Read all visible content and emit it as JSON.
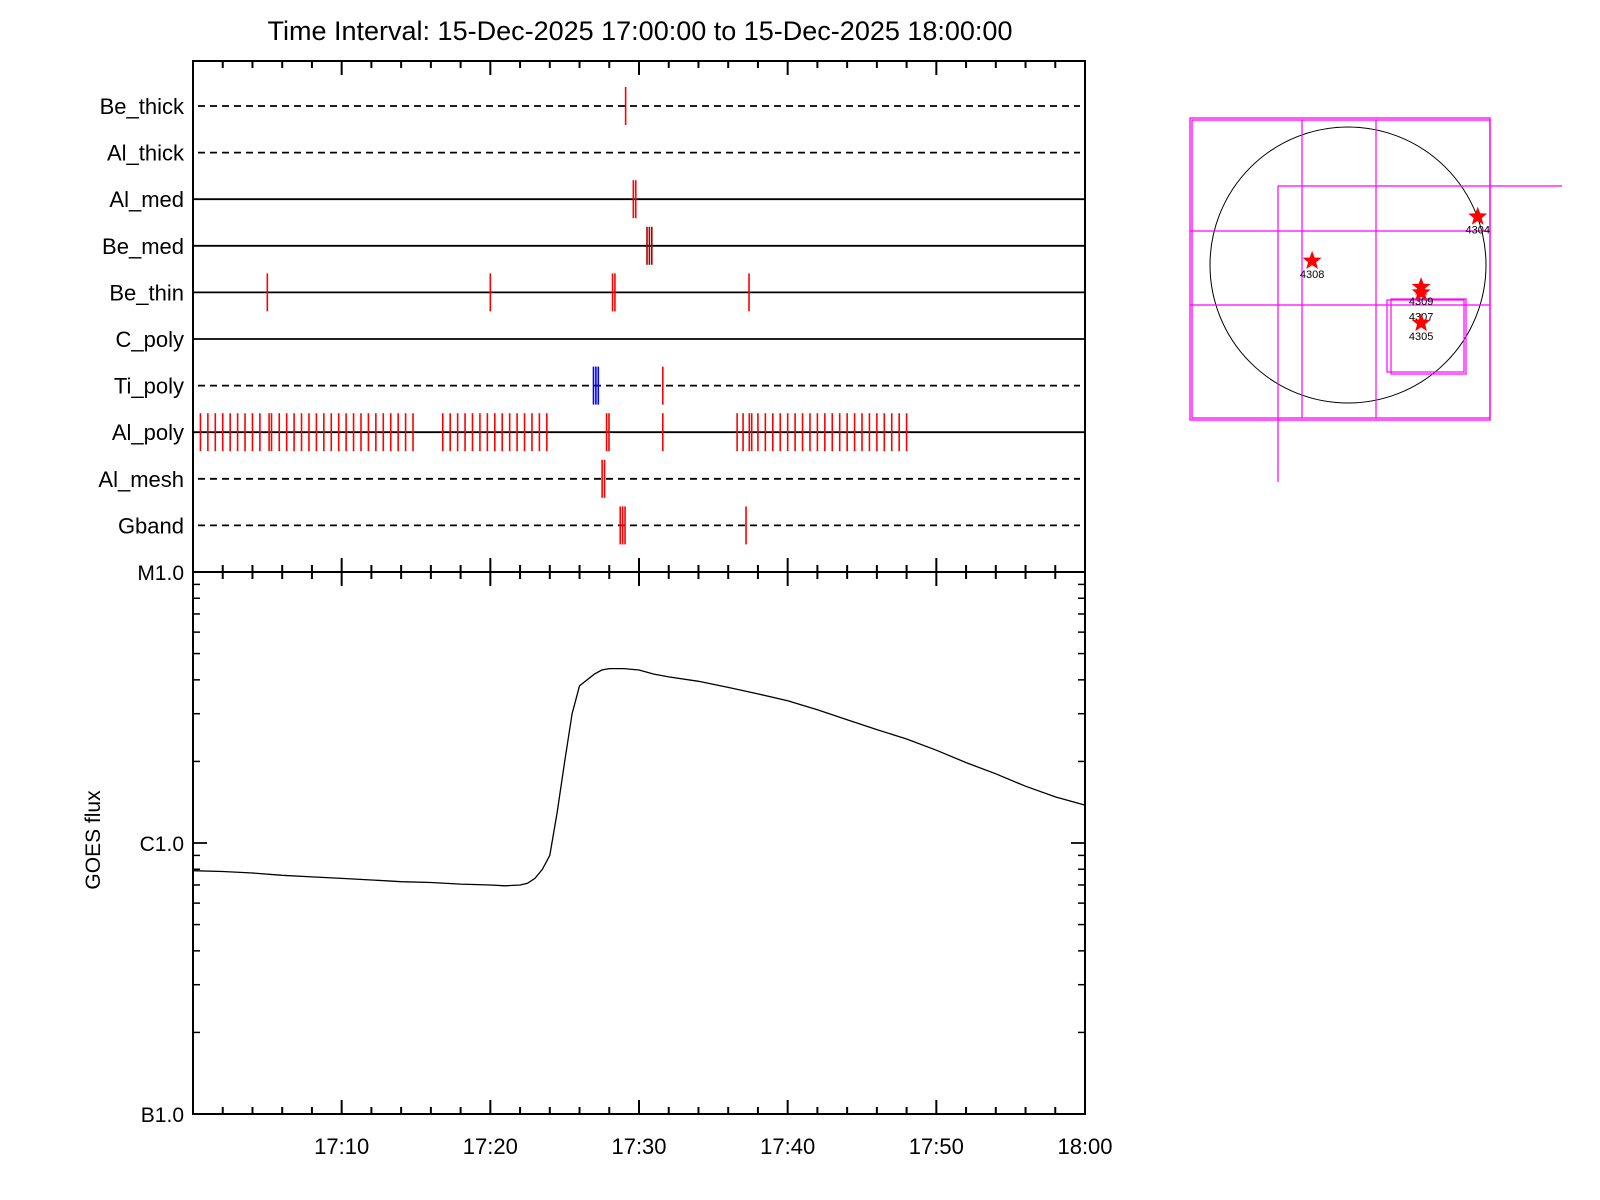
{
  "chart_data": [
    {
      "type": "scatter",
      "title": "Time Interval: 15-Dec-2025 17:00:00 to 15-Dec-2025 18:00:00",
      "x_unit": "minutes after 17:00",
      "xlim": [
        0,
        60
      ],
      "filters": [
        {
          "name": "Be_thick",
          "line": "dashed",
          "marks": [
            {
              "t": 29.1,
              "color": "#ff0000",
              "count": 1
            }
          ]
        },
        {
          "name": "Al_thick",
          "line": "dashed",
          "marks": []
        },
        {
          "name": "Al_med",
          "line": "solid",
          "marks": [
            {
              "t": 29.7,
              "color": "#ff0000",
              "count": 2
            }
          ]
        },
        {
          "name": "Be_med",
          "line": "solid",
          "marks": [
            {
              "t": 30.7,
              "color": "#aa0000",
              "count": 3
            }
          ]
        },
        {
          "name": "Be_thin",
          "line": "solid",
          "marks": [
            {
              "t": 5.0,
              "color": "#ff0000",
              "count": 1
            },
            {
              "t": 20.0,
              "color": "#ff0000",
              "count": 1
            },
            {
              "t": 28.3,
              "color": "#ff0000",
              "count": 2
            },
            {
              "t": 37.4,
              "color": "#ff0000",
              "count": 1
            }
          ]
        },
        {
          "name": "C_poly",
          "line": "solid",
          "marks": []
        },
        {
          "name": "Ti_poly",
          "line": "dashed",
          "marks": [
            {
              "t": 27.1,
              "color": "#0000ff",
              "count": 3
            },
            {
              "t": 31.6,
              "color": "#ff0000",
              "count": 1
            }
          ]
        },
        {
          "name": "Al_poly",
          "line": "solid",
          "marks": [
            {
              "t": 0.5,
              "color": "#ff0000",
              "count": 1
            },
            {
              "t": 1.0,
              "color": "#ff0000",
              "count": 1
            },
            {
              "t": 1.5,
              "color": "#ff0000",
              "count": 1
            },
            {
              "t": 2.0,
              "color": "#ff0000",
              "count": 1
            },
            {
              "t": 2.5,
              "color": "#ff0000",
              "count": 1
            },
            {
              "t": 3.0,
              "color": "#ff0000",
              "count": 1
            },
            {
              "t": 3.5,
              "color": "#ff0000",
              "count": 1
            },
            {
              "t": 4.0,
              "color": "#ff0000",
              "count": 1
            },
            {
              "t": 4.5,
              "color": "#ff0000",
              "count": 1
            },
            {
              "t": 5.2,
              "color": "#ff0000",
              "count": 2
            },
            {
              "t": 5.8,
              "color": "#ff0000",
              "count": 1
            },
            {
              "t": 6.3,
              "color": "#ff0000",
              "count": 1
            },
            {
              "t": 6.8,
              "color": "#ff0000",
              "count": 1
            },
            {
              "t": 7.3,
              "color": "#ff0000",
              "count": 1
            },
            {
              "t": 7.8,
              "color": "#ff0000",
              "count": 1
            },
            {
              "t": 8.3,
              "color": "#ff0000",
              "count": 1
            },
            {
              "t": 8.8,
              "color": "#ff0000",
              "count": 1
            },
            {
              "t": 9.3,
              "color": "#ff0000",
              "count": 1
            },
            {
              "t": 9.8,
              "color": "#ff0000",
              "count": 1
            },
            {
              "t": 10.3,
              "color": "#ff0000",
              "count": 1
            },
            {
              "t": 10.8,
              "color": "#ff0000",
              "count": 1
            },
            {
              "t": 11.3,
              "color": "#ff0000",
              "count": 1
            },
            {
              "t": 11.8,
              "color": "#ff0000",
              "count": 1
            },
            {
              "t": 12.3,
              "color": "#ff0000",
              "count": 1
            },
            {
              "t": 12.8,
              "color": "#ff0000",
              "count": 1
            },
            {
              "t": 13.3,
              "color": "#ff0000",
              "count": 1
            },
            {
              "t": 13.8,
              "color": "#ff0000",
              "count": 1
            },
            {
              "t": 14.3,
              "color": "#ff0000",
              "count": 1
            },
            {
              "t": 14.8,
              "color": "#ff0000",
              "count": 1
            },
            {
              "t": 16.8,
              "color": "#ff0000",
              "count": 1
            },
            {
              "t": 17.3,
              "color": "#ff0000",
              "count": 1
            },
            {
              "t": 17.8,
              "color": "#ff0000",
              "count": 1
            },
            {
              "t": 18.3,
              "color": "#ff0000",
              "count": 1
            },
            {
              "t": 18.8,
              "color": "#ff0000",
              "count": 1
            },
            {
              "t": 19.3,
              "color": "#ff0000",
              "count": 1
            },
            {
              "t": 19.8,
              "color": "#ff0000",
              "count": 1
            },
            {
              "t": 20.3,
              "color": "#ff0000",
              "count": 1
            },
            {
              "t": 20.8,
              "color": "#ff0000",
              "count": 1
            },
            {
              "t": 21.3,
              "color": "#ff0000",
              "count": 1
            },
            {
              "t": 21.8,
              "color": "#ff0000",
              "count": 1
            },
            {
              "t": 22.3,
              "color": "#ff0000",
              "count": 1
            },
            {
              "t": 22.8,
              "color": "#ff0000",
              "count": 1
            },
            {
              "t": 23.3,
              "color": "#ff0000",
              "count": 1
            },
            {
              "t": 23.8,
              "color": "#ff0000",
              "count": 1
            },
            {
              "t": 27.9,
              "color": "#ff0000",
              "count": 2
            },
            {
              "t": 31.6,
              "color": "#ff0000",
              "count": 1
            },
            {
              "t": 36.6,
              "color": "#ff0000",
              "count": 1
            },
            {
              "t": 37.0,
              "color": "#ff0000",
              "count": 1
            },
            {
              "t": 37.5,
              "color": "#ff0000",
              "count": 2
            },
            {
              "t": 38.0,
              "color": "#ff0000",
              "count": 1
            },
            {
              "t": 38.5,
              "color": "#ff0000",
              "count": 1
            },
            {
              "t": 39.0,
              "color": "#ff0000",
              "count": 1
            },
            {
              "t": 39.5,
              "color": "#ff0000",
              "count": 1
            },
            {
              "t": 40.0,
              "color": "#ff0000",
              "count": 1
            },
            {
              "t": 40.5,
              "color": "#ff0000",
              "count": 1
            },
            {
              "t": 41.0,
              "color": "#ff0000",
              "count": 1
            },
            {
              "t": 41.5,
              "color": "#ff0000",
              "count": 1
            },
            {
              "t": 42.0,
              "color": "#ff0000",
              "count": 1
            },
            {
              "t": 42.5,
              "color": "#ff0000",
              "count": 1
            },
            {
              "t": 43.0,
              "color": "#ff0000",
              "count": 1
            },
            {
              "t": 43.5,
              "color": "#ff0000",
              "count": 1
            },
            {
              "t": 44.0,
              "color": "#ff0000",
              "count": 1
            },
            {
              "t": 44.5,
              "color": "#ff0000",
              "count": 1
            },
            {
              "t": 45.0,
              "color": "#ff0000",
              "count": 1
            },
            {
              "t": 45.5,
              "color": "#ff0000",
              "count": 1
            },
            {
              "t": 46.0,
              "color": "#ff0000",
              "count": 1
            },
            {
              "t": 46.5,
              "color": "#ff0000",
              "count": 1
            },
            {
              "t": 47.0,
              "color": "#ff0000",
              "count": 1
            },
            {
              "t": 47.5,
              "color": "#ff0000",
              "count": 1
            },
            {
              "t": 48.0,
              "color": "#ff0000",
              "count": 1
            }
          ]
        },
        {
          "name": "Al_mesh",
          "line": "dashed",
          "marks": [
            {
              "t": 27.6,
              "color": "#ff0000",
              "count": 2
            }
          ]
        },
        {
          "name": "Gband",
          "line": "dashed",
          "marks": [
            {
              "t": 28.9,
              "color": "#ff0000",
              "count": 3
            },
            {
              "t": 37.2,
              "color": "#ff0000",
              "count": 1
            }
          ]
        }
      ]
    },
    {
      "type": "line",
      "ylabel": "GOES flux",
      "y_scale": "log",
      "ylim": [
        1e-07,
        1e-05
      ],
      "y_ticks": [
        {
          "value": 1e-07,
          "label": "B1.0"
        },
        {
          "value": 1e-06,
          "label": "C1.0"
        },
        {
          "value": 1e-05,
          "label": "M1.0"
        }
      ],
      "xlim": [
        0,
        60
      ],
      "x_unit": "minutes after 17:00",
      "x_ticks": [
        {
          "value": 10,
          "label": "17:10"
        },
        {
          "value": 20,
          "label": "17:20"
        },
        {
          "value": 30,
          "label": "17:30"
        },
        {
          "value": 40,
          "label": "17:40"
        },
        {
          "value": 50,
          "label": "17:50"
        },
        {
          "value": 60,
          "label": "18:00"
        }
      ],
      "series": [
        {
          "color": "#000000",
          "x": [
            0,
            2,
            4,
            6,
            8,
            10,
            12,
            13,
            14,
            16,
            18,
            20,
            21,
            22,
            22.5,
            23,
            23.5,
            24,
            24.5,
            25,
            25.5,
            26,
            27,
            27.5,
            28,
            29,
            30,
            31,
            32,
            34,
            36,
            38,
            40,
            42,
            44,
            46,
            48,
            50,
            52,
            54,
            56,
            58,
            60
          ],
          "y": [
            7.9e-07,
            7.85e-07,
            7.75e-07,
            7.6e-07,
            7.5e-07,
            7.4e-07,
            7.3e-07,
            7.25e-07,
            7.2e-07,
            7.15e-07,
            7.05e-07,
            7e-07,
            6.95e-07,
            7e-07,
            7.1e-07,
            7.4e-07,
            8e-07,
            9e-07,
            1.3e-06,
            2e-06,
            3e-06,
            3.8e-06,
            4.2e-06,
            4.35e-06,
            4.4e-06,
            4.4e-06,
            4.35e-06,
            4.2e-06,
            4.1e-06,
            3.95e-06,
            3.75e-06,
            3.55e-06,
            3.35e-06,
            3.1e-06,
            2.85e-06,
            2.62e-06,
            2.42e-06,
            2.2e-06,
            1.98e-06,
            1.8e-06,
            1.62e-06,
            1.48e-06,
            1.38e-06
          ]
        }
      ]
    },
    {
      "type": "scatter",
      "regions": [
        {
          "label": "4304",
          "x": 0.94,
          "y": 0.35
        },
        {
          "label": "4308",
          "x": -0.26,
          "y": 0.03
        },
        {
          "label": "4309",
          "x": 0.53,
          "y": -0.16
        },
        {
          "label": "4307",
          "x": 0.53,
          "y": -0.2
        },
        {
          "label": "4305",
          "x": 0.53,
          "y": -0.42
        }
      ],
      "marker_color": "#ff0000",
      "fov_color": "#ff00ff"
    }
  ]
}
